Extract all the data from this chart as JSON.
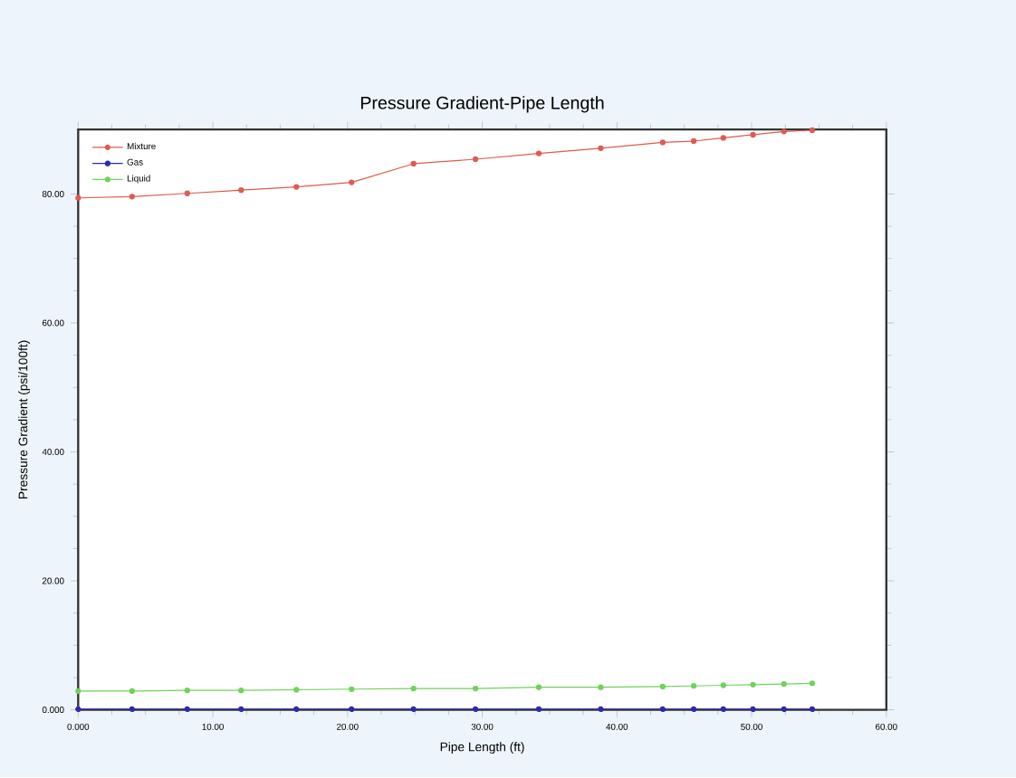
{
  "chart_data": {
    "type": "line",
    "title": "Pressure Gradient-Pipe Length",
    "xlabel": "Pipe Length (ft)",
    "ylabel": "Pressure Gradient (psi/100ft)",
    "x": [
      0,
      4.0,
      8.1,
      12.1,
      16.2,
      20.3,
      24.9,
      29.5,
      34.2,
      38.8,
      43.4,
      45.7,
      47.9,
      50.1,
      52.4,
      54.5
    ],
    "series": [
      {
        "name": "Mixture",
        "color": "#e05a4f",
        "values": [
          79.4,
          79.6,
          80.1,
          80.6,
          81.1,
          81.8,
          84.7,
          85.4,
          86.3,
          87.1,
          88.0,
          88.2,
          88.7,
          89.2,
          89.7,
          89.9
        ]
      },
      {
        "name": "Gas",
        "color": "#2b2bb0",
        "values": [
          0.1,
          0.1,
          0.1,
          0.1,
          0.1,
          0.1,
          0.1,
          0.1,
          0.1,
          0.1,
          0.1,
          0.1,
          0.1,
          0.1,
          0.1,
          0.1
        ]
      },
      {
        "name": "Liquid",
        "color": "#6fd35a",
        "values": [
          2.9,
          2.9,
          3.0,
          3.0,
          3.1,
          3.2,
          3.3,
          3.3,
          3.5,
          3.5,
          3.6,
          3.7,
          3.8,
          3.9,
          4.0,
          4.1
        ]
      }
    ],
    "xlim": [
      0,
      60
    ],
    "ylim": [
      0,
      90
    ],
    "xticks": [
      {
        "value": 0,
        "label": "0.000"
      },
      {
        "value": 10,
        "label": "10.00"
      },
      {
        "value": 20,
        "label": "20.00"
      },
      {
        "value": 30,
        "label": "30.00"
      },
      {
        "value": 40,
        "label": "40.00"
      },
      {
        "value": 50,
        "label": "50.00"
      },
      {
        "value": 60,
        "label": "60.00"
      }
    ],
    "yticks": [
      {
        "value": 0,
        "label": "0.000"
      },
      {
        "value": 20,
        "label": "20.00"
      },
      {
        "value": 40,
        "label": "40.00"
      },
      {
        "value": 60,
        "label": "60.00"
      },
      {
        "value": 80,
        "label": "80.00"
      }
    ],
    "legend": "top left",
    "marker": "circle",
    "line_style": "solid",
    "grid": false
  }
}
